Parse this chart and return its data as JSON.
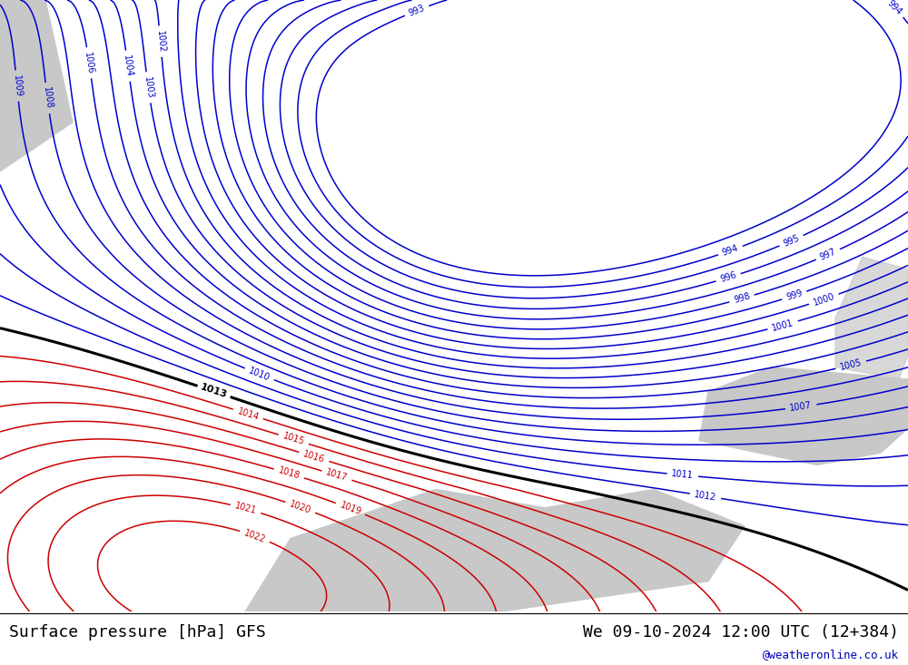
{
  "title_left": "Surface pressure [hPa] GFS",
  "title_right": "We 09-10-2024 12:00 UTC (12+384)",
  "watermark": "@weatheronline.co.uk",
  "land_color": "#99cc66",
  "sea_color": "#c8c8c8",
  "blue_contour_color": "#0000cc",
  "red_contour_color": "#cc0000",
  "black_contour_color": "#000000",
  "black_contour_values": [
    1013
  ],
  "blue_contour_min": 993,
  "blue_contour_max": 1012,
  "red_contour_min": 1014,
  "red_contour_max": 1022,
  "figsize": [
    10.0,
    7.33
  ],
  "dpi": 100
}
